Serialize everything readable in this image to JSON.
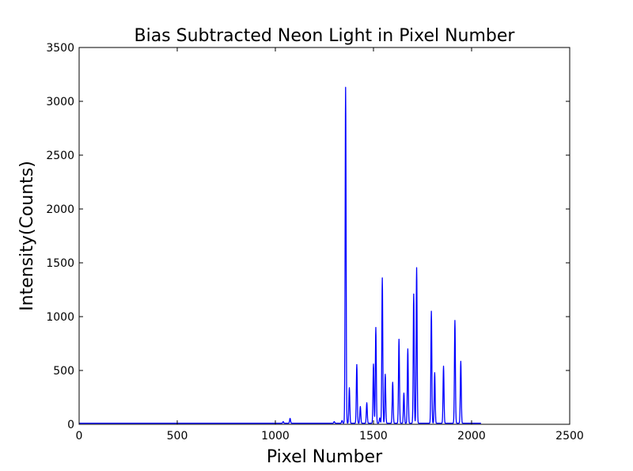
{
  "chart_data": {
    "type": "line",
    "title": "Bias Subtracted Neon Light in Pixel Number",
    "xlabel": "Pixel Number",
    "ylabel": "Intensity(Counts)",
    "xlim": [
      0,
      2500
    ],
    "ylim": [
      0,
      3500
    ],
    "xticks": [
      0,
      500,
      1000,
      1500,
      2000,
      2500
    ],
    "yticks": [
      0,
      500,
      1000,
      1500,
      2000,
      2500,
      3000,
      3500
    ],
    "grid": false,
    "line_color": "#0000ff",
    "x_range": [
      0,
      2048
    ],
    "baseline": 10,
    "peaks": [
      {
        "x": 1040,
        "y": 25
      },
      {
        "x": 1075,
        "y": 55
      },
      {
        "x": 1300,
        "y": 25
      },
      {
        "x": 1340,
        "y": 35
      },
      {
        "x": 1358,
        "y": 3130
      },
      {
        "x": 1377,
        "y": 340
      },
      {
        "x": 1415,
        "y": 555
      },
      {
        "x": 1433,
        "y": 165
      },
      {
        "x": 1466,
        "y": 200
      },
      {
        "x": 1500,
        "y": 560
      },
      {
        "x": 1512,
        "y": 900
      },
      {
        "x": 1532,
        "y": 60
      },
      {
        "x": 1545,
        "y": 1360
      },
      {
        "x": 1560,
        "y": 465
      },
      {
        "x": 1598,
        "y": 390
      },
      {
        "x": 1630,
        "y": 790
      },
      {
        "x": 1655,
        "y": 290
      },
      {
        "x": 1675,
        "y": 700
      },
      {
        "x": 1705,
        "y": 1210
      },
      {
        "x": 1720,
        "y": 1455
      },
      {
        "x": 1795,
        "y": 1050
      },
      {
        "x": 1812,
        "y": 480
      },
      {
        "x": 1857,
        "y": 540
      },
      {
        "x": 1915,
        "y": 965
      },
      {
        "x": 1945,
        "y": 585
      }
    ]
  }
}
